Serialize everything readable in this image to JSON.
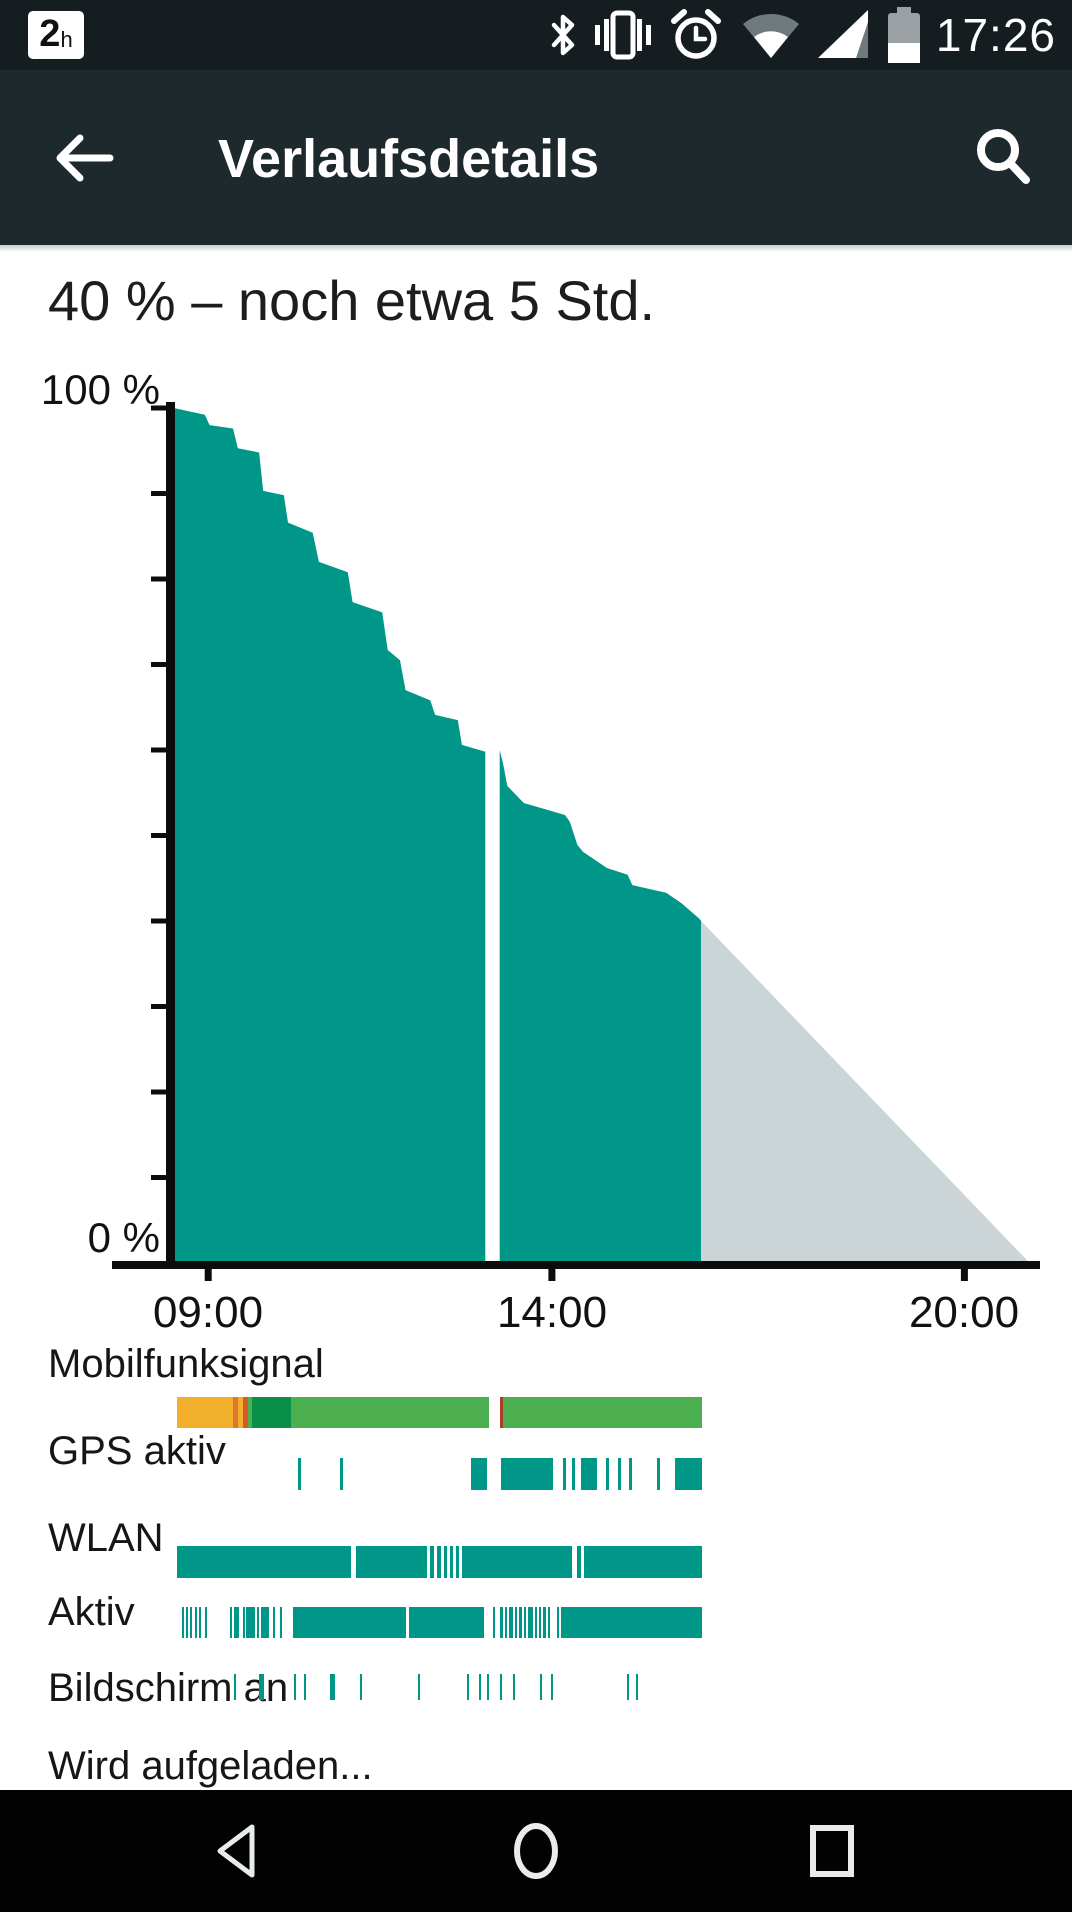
{
  "status_bar": {
    "notification": {
      "count": "2",
      "unit": "h"
    },
    "icons": [
      "bluetooth",
      "vibrate",
      "alarm",
      "wifi",
      "cellular",
      "battery"
    ],
    "time": "17:26"
  },
  "app_bar": {
    "title": "Verlaufsdetails"
  },
  "headline": "40 % – noch etwa 5 Std.",
  "chart_data": {
    "type": "area",
    "ylabel_top": "100 %",
    "ylabel_bottom": "0 %",
    "ylim": [
      0,
      100
    ],
    "y_tick_step_pct": 10,
    "xlim_hours": [
      7.6,
      21.1
    ],
    "x_ticks": [
      {
        "hour": 9,
        "label": "09:00"
      },
      {
        "hour": 14,
        "label": "14:00"
      },
      {
        "hour": 20,
        "label": "20:00"
      }
    ],
    "current_pct": 40,
    "history": {
      "segment1": [
        [
          8.5,
          100
        ],
        [
          8.95,
          99.2
        ],
        [
          9.02,
          98.0
        ],
        [
          9.36,
          97.6
        ],
        [
          9.43,
          95.3
        ],
        [
          9.74,
          94.8
        ],
        [
          9.8,
          90.3
        ],
        [
          10.1,
          89.8
        ],
        [
          10.16,
          86.6
        ],
        [
          10.52,
          85.4
        ],
        [
          10.61,
          82.0
        ],
        [
          11.03,
          80.8
        ],
        [
          11.1,
          77.3
        ],
        [
          11.53,
          76.1
        ],
        [
          11.61,
          71.7
        ],
        [
          11.79,
          70.5
        ],
        [
          11.87,
          67.0
        ],
        [
          12.23,
          65.8
        ],
        [
          12.3,
          64.1
        ],
        [
          12.63,
          63.5
        ],
        [
          12.69,
          60.6
        ],
        [
          13.03,
          59.8
        ]
      ],
      "segment2": [
        [
          13.24,
          60.0
        ],
        [
          13.29,
          58.4
        ],
        [
          13.35,
          55.8
        ],
        [
          13.59,
          53.8
        ],
        [
          14.19,
          52.4
        ],
        [
          14.26,
          51.6
        ],
        [
          14.37,
          48.9
        ],
        [
          14.45,
          48.1
        ],
        [
          14.8,
          46.2
        ],
        [
          15.1,
          45.4
        ],
        [
          15.17,
          44.2
        ],
        [
          15.66,
          43.3
        ],
        [
          15.88,
          42.1
        ],
        [
          16.14,
          40.3
        ],
        [
          16.17,
          40.0
        ]
      ]
    },
    "projection": [
      [
        16.17,
        40.0
      ],
      [
        20.95,
        0
      ]
    ],
    "colors": {
      "history": "#009688",
      "projection": "#cbd5d8",
      "axis": "#0c0c0c"
    }
  },
  "palette": {
    "teal": "#009688",
    "green": "#4caf50",
    "dark_green": "#0a8f48",
    "amber": "#f2af2c",
    "orange": "#e0772f",
    "deep_orange": "#d9572c",
    "red": "#b03a2a"
  },
  "timeline_rows": [
    {
      "label": "Mobilfunksignal",
      "segments": [
        [
          0,
          56,
          "amber"
        ],
        [
          56,
          5,
          "orange"
        ],
        [
          61,
          5,
          "amber"
        ],
        [
          66,
          5,
          "deep_orange"
        ],
        [
          71,
          4,
          "green"
        ],
        [
          75,
          39,
          "dark_green"
        ],
        [
          114,
          198,
          "green"
        ],
        [
          323,
          3,
          "red"
        ],
        [
          326,
          199,
          "green"
        ]
      ]
    },
    {
      "label": "GPS aktiv",
      "segments": [
        [
          121,
          3
        ],
        [
          163,
          3
        ],
        [
          294,
          16
        ],
        [
          324,
          52
        ],
        [
          386,
          3
        ],
        [
          395,
          3
        ],
        [
          404,
          16
        ],
        [
          429,
          3
        ],
        [
          441,
          3
        ],
        [
          452,
          3
        ],
        [
          480,
          3
        ],
        [
          498,
          27
        ]
      ]
    },
    {
      "label": "WLAN",
      "segments": [
        [
          0,
          174
        ],
        [
          179,
          71
        ],
        [
          253,
          4
        ],
        [
          260,
          4
        ],
        [
          267,
          3
        ],
        [
          273,
          3
        ],
        [
          279,
          3
        ],
        [
          285,
          110
        ],
        [
          400,
          4
        ],
        [
          407,
          118
        ]
      ]
    },
    {
      "label": "Aktiv",
      "segments": [
        [
          5,
          2
        ],
        [
          9,
          2
        ],
        [
          13,
          2
        ],
        [
          18,
          2
        ],
        [
          22,
          2
        ],
        [
          28,
          2
        ],
        [
          53,
          2
        ],
        [
          57,
          5
        ],
        [
          66,
          2
        ],
        [
          69,
          9
        ],
        [
          80,
          2
        ],
        [
          84,
          8
        ],
        [
          96,
          2
        ],
        [
          103,
          2
        ],
        [
          116,
          113
        ],
        [
          232,
          75
        ],
        [
          316,
          2
        ],
        [
          323,
          3
        ],
        [
          328,
          2
        ],
        [
          332,
          4
        ],
        [
          338,
          2
        ],
        [
          342,
          3
        ],
        [
          347,
          2
        ],
        [
          351,
          5
        ],
        [
          358,
          2
        ],
        [
          362,
          2
        ],
        [
          366,
          3
        ],
        [
          371,
          2
        ],
        [
          380,
          2
        ],
        [
          384,
          141
        ]
      ]
    },
    {
      "label": "Bildschirm an",
      "segments": [
        [
          57,
          2
        ],
        [
          82,
          5
        ],
        [
          117,
          2
        ],
        [
          127,
          2
        ],
        [
          153,
          5
        ],
        [
          183,
          2
        ],
        [
          241,
          2
        ],
        [
          290,
          2
        ],
        [
          302,
          2
        ],
        [
          310,
          2
        ],
        [
          323,
          2
        ],
        [
          336,
          2
        ],
        [
          363,
          2
        ],
        [
          374,
          2
        ],
        [
          450,
          2
        ],
        [
          459,
          2
        ]
      ]
    },
    {
      "label": "Wird aufgeladen...",
      "segments": []
    }
  ],
  "nav_bar": {
    "buttons": [
      "back",
      "home",
      "recents"
    ]
  }
}
